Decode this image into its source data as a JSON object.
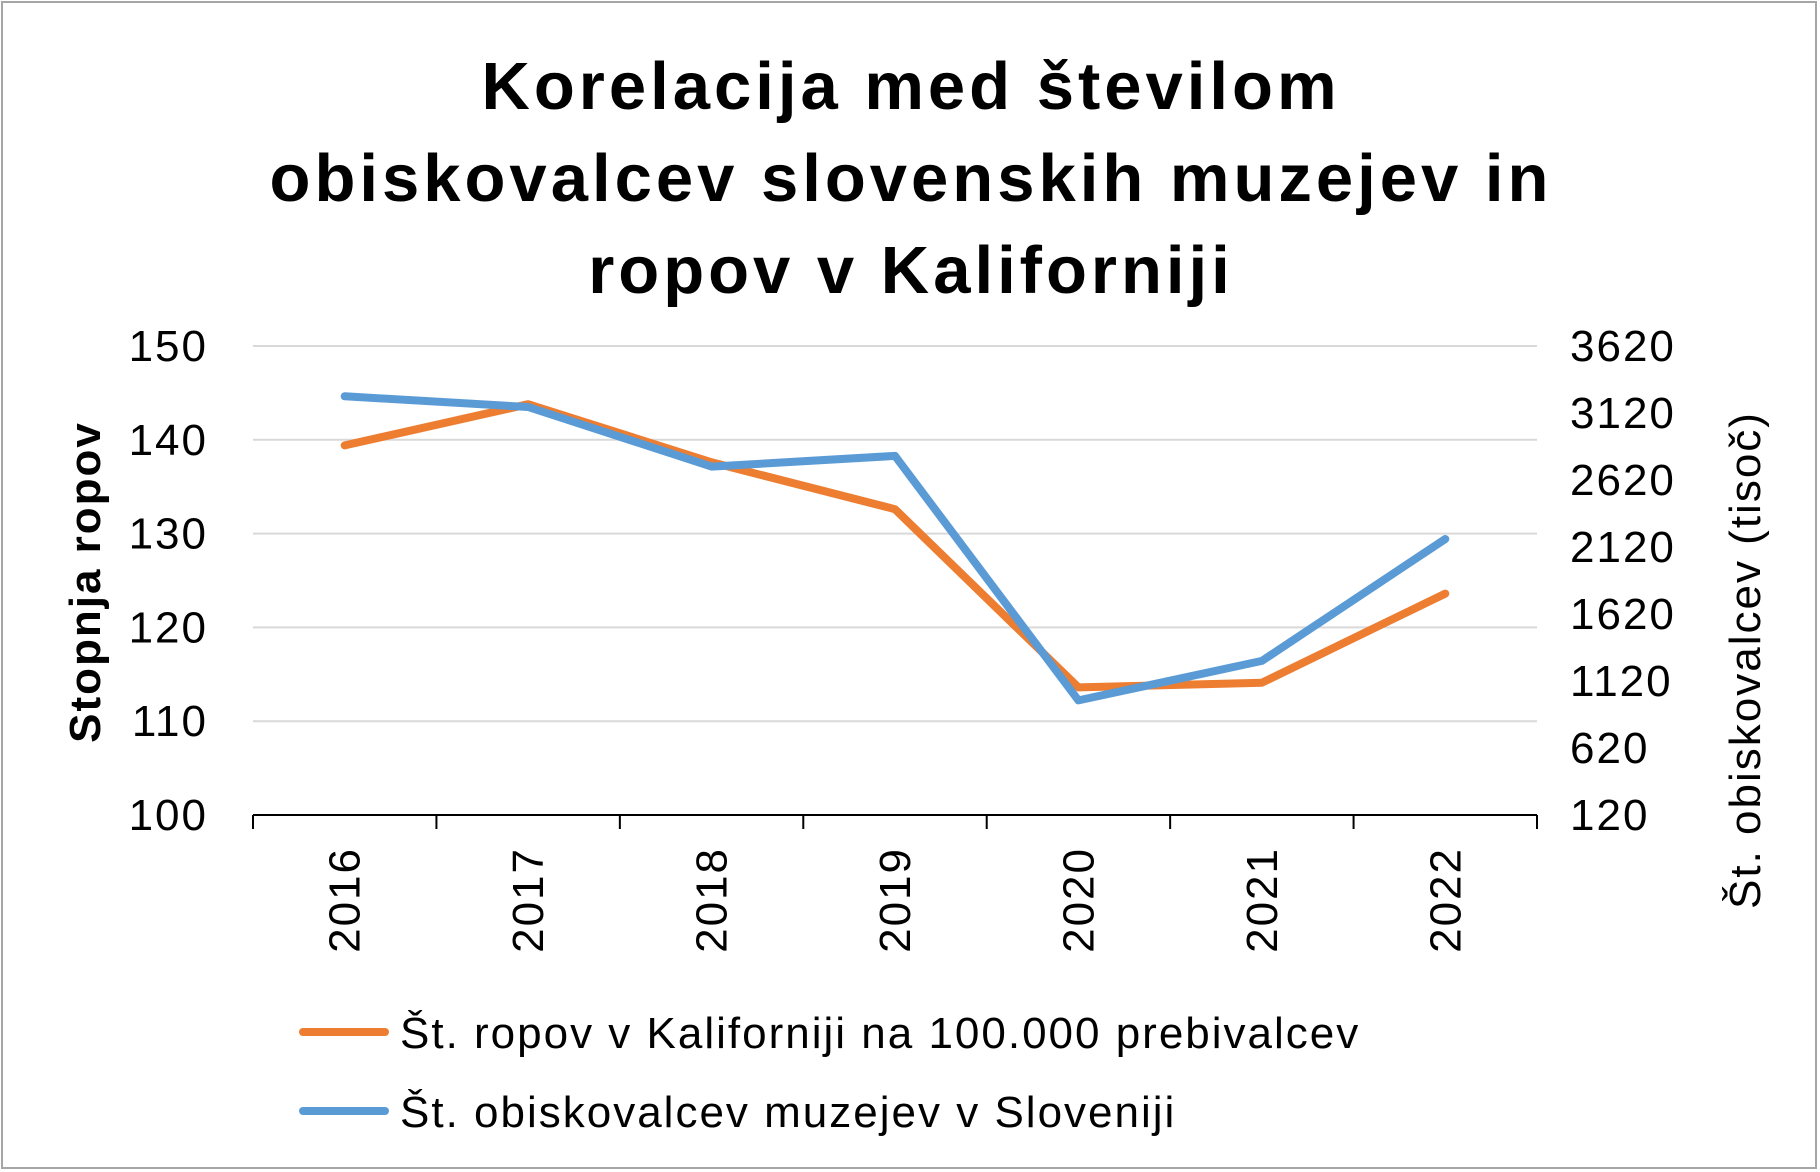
{
  "chart_data": {
    "type": "line",
    "title_lines": [
      "Korelacija med številom",
      "obiskovalcev slovenskih muzejev in",
      "ropov v Kaliforniji"
    ],
    "categories": [
      "2016",
      "2017",
      "2018",
      "2019",
      "2020",
      "2021",
      "2022"
    ],
    "ylabel": "Stopnja ropov",
    "y2label": "Št. obiskovalcev (tisoč)",
    "ylim": [
      100,
      150
    ],
    "yticks": [
      100,
      110,
      120,
      130,
      140,
      150
    ],
    "y2lim": [
      120,
      3620
    ],
    "y2ticks": [
      120,
      620,
      1120,
      1620,
      2120,
      2620,
      3120,
      3620
    ],
    "grid": true,
    "legend_position": "bottom",
    "series": [
      {
        "name": "Št. ropov  v Kaliforniji na 100.000 prebivalcev",
        "axis": "left",
        "color": "#ed7d31",
        "values": [
          139.4,
          143.8,
          137.6,
          132.6,
          113.6,
          114.1,
          123.6
        ]
      },
      {
        "name": "Št. obiskovalcev muzejev v Sloveniji",
        "axis": "right",
        "color": "#5b9bd5",
        "values": [
          3245,
          3165,
          2720,
          2800,
          975,
          1270,
          2180
        ]
      }
    ]
  }
}
